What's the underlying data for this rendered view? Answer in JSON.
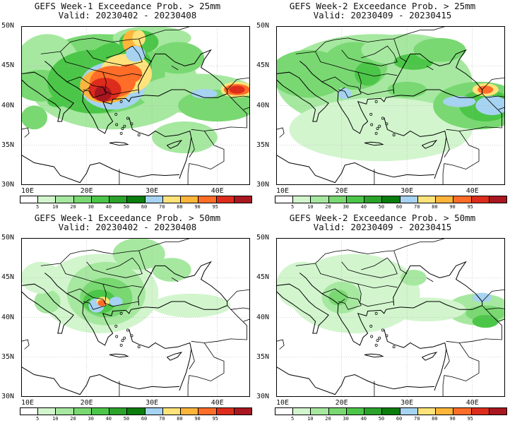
{
  "panels": [
    {
      "title": "GEFS Week-1 Exceedance Prob. > 25mm",
      "valid": "Valid: 20230402 - 20230408"
    },
    {
      "title": "GEFS Week-2 Exceedance Prob. > 25mm",
      "valid": "Valid: 20230409 - 20230415"
    },
    {
      "title": "GEFS Week-1 Exceedance Prob. > 50mm",
      "valid": "Valid: 20230402 - 20230408"
    },
    {
      "title": "GEFS Week-2 Exceedance Prob. > 50mm",
      "valid": "Valid: 20230409 - 20230415"
    }
  ],
  "axes": {
    "lat_labels": [
      "50N",
      "45N",
      "40N",
      "35N",
      "30N"
    ],
    "lon_labels": [
      "10E",
      "20E",
      "30E",
      "40E"
    ]
  },
  "colorbar": {
    "labels": [
      "5",
      "10",
      "20",
      "30",
      "40",
      "50",
      "60",
      "70",
      "80",
      "90",
      "95"
    ],
    "colors": [
      "#ffffff",
      "#d2f5cd",
      "#a6e8a0",
      "#79d872",
      "#4cc648",
      "#2ba32b",
      "#0b7d0d",
      "#a6d3f1",
      "#ffe37a",
      "#ffb53a",
      "#ff6d28",
      "#dd2c1c",
      "#a8171f"
    ]
  }
}
